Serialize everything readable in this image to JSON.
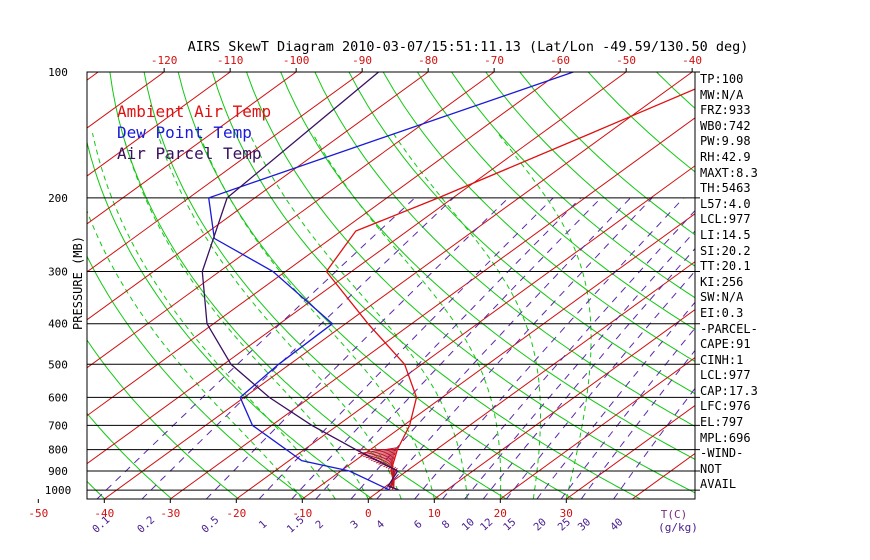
{
  "chart_data": {
    "type": "line",
    "title": "AIRS SkewT Diagram 2010-03-07/15:51:11.13 (Lat/Lon -49.59/130.50 deg)",
    "ylabel": "PRESSURE (MB)",
    "xlabel": "T(C)",
    "mixing_ratio_unit": "(g/kg)",
    "ylim": [
      1050,
      100
    ],
    "y_scale": "log",
    "pressure_ticks": [
      "100",
      "200",
      "300",
      "400",
      "500",
      "600",
      "700",
      "800",
      "900",
      "1000"
    ],
    "temp_ticks_bottom": [
      "-50",
      "-40",
      "-30",
      "-20",
      "-10",
      "0",
      "10",
      "20",
      "30"
    ],
    "temp_ticks_top": [
      "-120",
      "-110",
      "-100",
      "-90",
      "-80",
      "-70",
      "-60",
      "-50",
      "-40"
    ],
    "mixing_ratio_labels": [
      "0.1",
      "0.2",
      "0.5",
      "1",
      "1.5",
      "2",
      "3",
      "4",
      "6",
      "8",
      "10",
      "12",
      "15",
      "20",
      "25",
      "30",
      "40"
    ],
    "legend": [
      "Ambient Air Temp",
      "Dew Point Temp",
      "Air Parcel Temp"
    ],
    "legend_placement": "top-left",
    "colors": {
      "ambient": "#e01010",
      "dewpoint": "#1a1ad8",
      "parcel": "#3a1060",
      "isotherm": "#d01010",
      "dry_adiabat": "#12c812",
      "moist_adiabat": "#12c812",
      "mixing_ratio": "#5a28a8",
      "cape": "#c01028"
    },
    "series": [
      {
        "name": "Ambient Air Temp",
        "pressure": [
          100,
          140,
          200,
          240,
          300,
          400,
          500,
          600,
          700,
          800,
          900,
          950,
          990
        ],
        "temp_c": [
          -33.5,
          -42.5,
          -52.2,
          -57.8,
          -53.8,
          -36.6,
          -22.6,
          -13.9,
          -9.1,
          -5.9,
          -2.4,
          0.1,
          1.6
        ]
      },
      {
        "name": "Dew Point Temp",
        "pressure": [
          100,
          150,
          200,
          250,
          300,
          400,
          500,
          600,
          700,
          850,
          900,
          1000
        ],
        "temp_c": [
          -58.0,
          -75.0,
          -87.0,
          -77.7,
          -61.9,
          -42.0,
          -41.7,
          -40.6,
          -32.9,
          -18.1,
          -8.7,
          1.4
        ]
      },
      {
        "name": "Air Parcel Temp",
        "pressure": [
          100,
          200,
          300,
          400,
          500,
          600,
          700,
          800,
          900,
          977,
          1000
        ],
        "temp_c": [
          -87.5,
          -84.2,
          -72.6,
          -61.0,
          -48.9,
          -36.2,
          -23.9,
          -12.2,
          -1.4,
          0.3,
          2.8
        ]
      }
    ],
    "isotherms_c": [
      -160,
      -150,
      -140,
      -130,
      -120,
      -110,
      -100,
      -90,
      -80,
      -70,
      -60,
      -50,
      -40,
      -30,
      -20,
      -10,
      0,
      10,
      20,
      30,
      40
    ],
    "dry_adiabats_theta_k": [
      220,
      230,
      240,
      250,
      260,
      270,
      280,
      290,
      300,
      310,
      320,
      330,
      340,
      350,
      360,
      370,
      380,
      390,
      400,
      420,
      440,
      460,
      480,
      500,
      520,
      540,
      560
    ],
    "moist_adiabats_c": [
      -10,
      -5,
      0,
      5,
      10,
      15,
      20,
      25,
      30
    ],
    "stats": [
      "TP:100",
      "MW:N/A",
      "FRZ:933",
      "WB0:742",
      "PW:9.98",
      "RH:42.9",
      "MAXT:8.3",
      "TH:5463",
      "L57:4.0",
      "LCL:977",
      "LI:14.5",
      "SI:20.2",
      "TT:20.1",
      "KI:256",
      "SW:N/A",
      "EI:0.3",
      "-PARCEL-",
      "CAPE:91",
      "CINH:1",
      "LCL:977",
      "CAP:17.3",
      "LFC:976",
      "EL:797",
      "MPL:696",
      "-WIND-",
      "NOT",
      "AVAIL"
    ]
  }
}
